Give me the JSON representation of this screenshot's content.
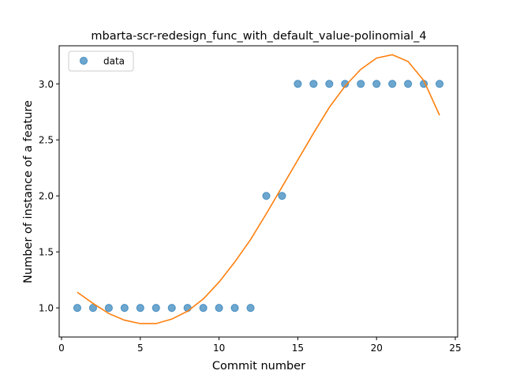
{
  "chart_data": {
    "type": "scatter",
    "title": "mbarta-scr-redesign_func_with_default_value-polinomial_4",
    "xlabel": "Commit number",
    "ylabel": "Number of instance of a feature",
    "xlim": [
      -0.15,
      25.15
    ],
    "ylim": [
      0.74,
      3.34
    ],
    "xticks": [
      0,
      5,
      10,
      15,
      20,
      25
    ],
    "yticks": [
      1.0,
      1.5,
      2.0,
      2.5,
      3.0
    ],
    "xtick_labels": [
      "0",
      "5",
      "10",
      "15",
      "20",
      "25"
    ],
    "ytick_labels": [
      "1.0",
      "1.5",
      "2.0",
      "2.5",
      "3.0"
    ],
    "grid": false,
    "legend": {
      "position": "top-left",
      "entries": [
        "data"
      ]
    },
    "series": [
      {
        "name": "data",
        "kind": "scatter",
        "color": "#1f77b4",
        "x": [
          1,
          2,
          3,
          4,
          5,
          6,
          7,
          8,
          9,
          10,
          11,
          12,
          13,
          14,
          15,
          16,
          17,
          18,
          19,
          20,
          21,
          22,
          23,
          24
        ],
        "y": [
          1,
          1,
          1,
          1,
          1,
          1,
          1,
          1,
          1,
          1,
          1,
          1,
          2,
          2,
          3,
          3,
          3,
          3,
          3,
          3,
          3,
          3,
          3,
          3
        ]
      },
      {
        "kind": "line",
        "color": "#ff7f0e",
        "x": [
          1,
          2,
          3,
          4,
          5,
          6,
          7,
          8,
          9,
          10,
          11,
          12,
          13,
          14,
          15,
          16,
          17,
          18,
          19,
          20,
          21,
          22,
          23,
          24
        ],
        "y": [
          1.14,
          1.04,
          0.95,
          0.89,
          0.86,
          0.86,
          0.9,
          0.97,
          1.08,
          1.23,
          1.41,
          1.61,
          1.84,
          2.08,
          2.32,
          2.56,
          2.79,
          2.98,
          3.13,
          3.23,
          3.26,
          3.2,
          3.03,
          2.72
        ]
      }
    ]
  }
}
